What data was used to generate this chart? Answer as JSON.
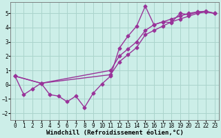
{
  "title": "",
  "xlabel": "Windchill (Refroidissement éolien,°C)",
  "ylabel": "",
  "background_color": "#cceee8",
  "grid_color": "#aad4cc",
  "line_color": "#993399",
  "xlim": [
    -0.5,
    23.5
  ],
  "ylim": [
    -2.5,
    5.8
  ],
  "xticks": [
    0,
    1,
    2,
    3,
    4,
    5,
    6,
    7,
    8,
    9,
    10,
    11,
    12,
    13,
    14,
    15,
    16,
    17,
    18,
    19,
    20,
    21,
    22,
    23
  ],
  "yticks": [
    -2,
    -1,
    0,
    1,
    2,
    3,
    4,
    5
  ],
  "series1_x": [
    0,
    1,
    2,
    3,
    4,
    5,
    6,
    7,
    8,
    9,
    10,
    11,
    12,
    13,
    14,
    15,
    16,
    17,
    18,
    19,
    20,
    21,
    22,
    23
  ],
  "series1_y": [
    0.6,
    -0.7,
    -0.3,
    0.1,
    -0.7,
    -0.8,
    -1.2,
    -0.8,
    -1.6,
    -0.6,
    0.05,
    0.6,
    2.55,
    3.4,
    4.1,
    5.5,
    4.2,
    4.4,
    4.35,
    5.0,
    4.9,
    5.1,
    5.1,
    5.0
  ],
  "series2_x": [
    0,
    3,
    11,
    12,
    13,
    14,
    15,
    16,
    17,
    18,
    19,
    20,
    21,
    22,
    23
  ],
  "series2_y": [
    0.6,
    0.1,
    1.0,
    2.0,
    2.5,
    3.0,
    3.8,
    4.2,
    4.4,
    4.6,
    4.8,
    5.0,
    5.1,
    5.15,
    5.0
  ],
  "series3_x": [
    0,
    3,
    11,
    12,
    13,
    14,
    15,
    16,
    17,
    18,
    19,
    20,
    21,
    22,
    23
  ],
  "series3_y": [
    0.6,
    0.1,
    0.7,
    1.6,
    2.1,
    2.6,
    3.5,
    3.8,
    4.1,
    4.4,
    4.6,
    4.8,
    5.0,
    5.1,
    5.0
  ],
  "marker": "D",
  "markersize": 2.5,
  "linewidth": 1.0,
  "xlabel_fontsize": 6.5,
  "tick_fontsize": 5.5
}
